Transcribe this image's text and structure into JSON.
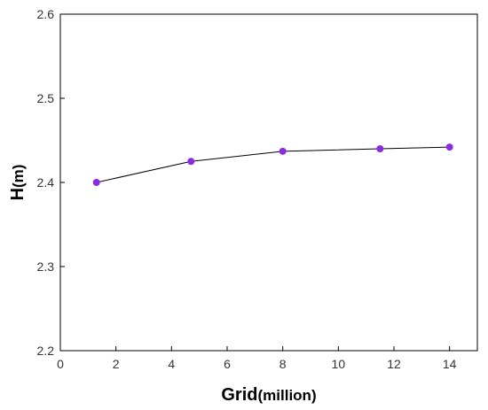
{
  "chart_data": {
    "type": "line",
    "title": "",
    "xlabel": "Grid",
    "xlabel_unit": "(million)",
    "ylabel": "H",
    "ylabel_unit": "(m)",
    "xlim": [
      0,
      15
    ],
    "ylim": [
      2.2,
      2.6
    ],
    "x_ticks": [
      0,
      2,
      4,
      6,
      8,
      10,
      12,
      14
    ],
    "y_ticks": [
      2.2,
      2.3,
      2.4,
      2.5,
      2.6
    ],
    "x_tick_labels": [
      "0",
      "2",
      "4",
      "6",
      "8",
      "10",
      "12",
      "14"
    ],
    "y_tick_labels": [
      "2.2",
      "2.3",
      "2.4",
      "2.5",
      "2.6"
    ],
    "grid": false,
    "legend": "none",
    "series": [
      {
        "x": [
          1.3,
          4.7,
          8.0,
          11.5,
          14.0
        ],
        "y": [
          2.4,
          2.425,
          2.437,
          2.44,
          2.442
        ],
        "line_color": "#000000",
        "marker_color": "#8a2be2"
      }
    ]
  }
}
